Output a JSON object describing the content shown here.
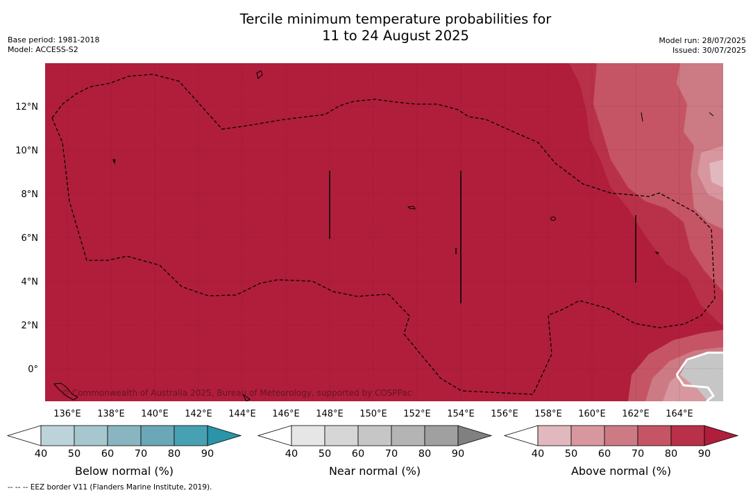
{
  "title": {
    "line1": "Tercile minimum temperature probabilities for",
    "line2": "11 to 24 August 2025"
  },
  "meta_left": {
    "base_period": "Base period: 1981-2018",
    "model": "Model: ACCESS-S2"
  },
  "meta_right": {
    "model_run": "Model run: 28/07/2025",
    "issued": "Issued: 30/07/2025"
  },
  "map": {
    "lat_labels": [
      "12°N",
      "10°N",
      "8°N",
      "6°N",
      "4°N",
      "2°N",
      "0°"
    ],
    "lon_labels": [
      "136°E",
      "138°E",
      "140°E",
      "142°E",
      "144°E",
      "146°E",
      "148°E",
      "150°E",
      "152°E",
      "154°E",
      "156°E",
      "158°E",
      "160°E",
      "162°E",
      "164°E"
    ],
    "copyright": "© Commonwealth of Australia 2025, Bureau of Meteorology, supported by COSPPac",
    "colors": {
      "sea_dominant": "#b01e3c",
      "land_outline": "#000000",
      "eez": "#000000"
    }
  },
  "colorbars": [
    {
      "title": "Below normal (%)",
      "ticks": [
        "40",
        "50",
        "60",
        "70",
        "80",
        "90"
      ],
      "colors": [
        "#ffffff",
        "#bcd3da",
        "#a7c7cf",
        "#89b5c0",
        "#6aa7b7",
        "#48a1b2",
        "#2b94a8"
      ]
    },
    {
      "title": "Near normal (%)",
      "ticks": [
        "40",
        "50",
        "60",
        "70",
        "80",
        "90"
      ],
      "colors": [
        "#ffffff",
        "#e6e6e6",
        "#d6d6d6",
        "#c6c6c6",
        "#b4b4b4",
        "#a0a0a0",
        "#808080"
      ]
    },
    {
      "title": "Above normal (%)",
      "ticks": [
        "40",
        "50",
        "60",
        "70",
        "80",
        "90"
      ],
      "colors": [
        "#ffffff",
        "#e2b8bf",
        "#d8979f",
        "#cc7a84",
        "#c55565",
        "#b93148",
        "#b01e3c"
      ]
    }
  ],
  "footnote": "-- -- -- EEZ border V11 (Flanders Marine Institute, 2019)."
}
